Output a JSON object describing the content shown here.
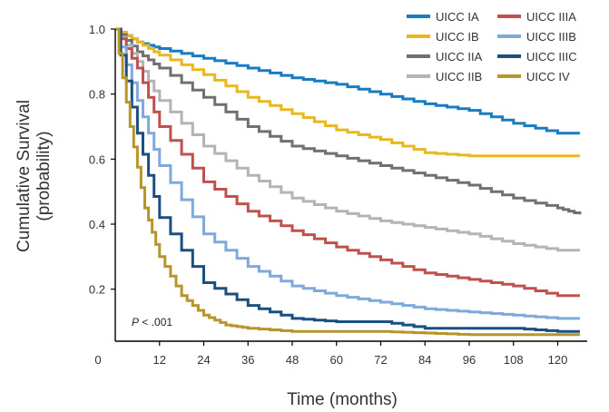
{
  "chart_data": {
    "type": "line",
    "xlabel": "Time (months)",
    "ylabel_line1": "Cumulative Survival",
    "ylabel_line2": "(probability)",
    "xlim": [
      0,
      128
    ],
    "ylim": [
      0.04,
      1.0
    ],
    "x_ticks": [
      12,
      24,
      36,
      48,
      60,
      72,
      84,
      96,
      108,
      120
    ],
    "x_origin_label": "0",
    "y_ticks": [
      0.2,
      0.4,
      0.6,
      0.8,
      1.0
    ],
    "y_tick_labels": [
      "0.2",
      "0.4",
      "0.6",
      "0.8",
      "1.0"
    ],
    "grid": false,
    "legend_placement": "top-right",
    "annotation": {
      "p_letter": "P",
      "p_rest": " < .001"
    },
    "series": [
      {
        "name": "UICC IA",
        "color": "#1a7cc0",
        "x": [
          0,
          6,
          12,
          24,
          36,
          48,
          60,
          72,
          84,
          96,
          108,
          120,
          126
        ],
        "y": [
          1.0,
          0.96,
          0.94,
          0.91,
          0.88,
          0.85,
          0.83,
          0.8,
          0.77,
          0.75,
          0.71,
          0.68,
          0.68
        ]
      },
      {
        "name": "UICC IB",
        "color": "#e8b820",
        "x": [
          0,
          6,
          12,
          24,
          36,
          48,
          60,
          72,
          84,
          96,
          108,
          120,
          126
        ],
        "y": [
          1.0,
          0.96,
          0.92,
          0.86,
          0.79,
          0.74,
          0.69,
          0.66,
          0.62,
          0.61,
          0.61,
          0.61,
          0.61
        ]
      },
      {
        "name": "UICC IIA",
        "color": "#707070",
        "x": [
          0,
          6,
          12,
          24,
          36,
          48,
          60,
          72,
          84,
          96,
          108,
          120,
          126
        ],
        "y": [
          1.0,
          0.93,
          0.88,
          0.79,
          0.7,
          0.64,
          0.61,
          0.58,
          0.55,
          0.52,
          0.48,
          0.45,
          0.43
        ]
      },
      {
        "name": "UICC IIB",
        "color": "#b4b4b4",
        "x": [
          0,
          6,
          12,
          24,
          36,
          48,
          60,
          72,
          84,
          96,
          108,
          120,
          126
        ],
        "y": [
          1.0,
          0.9,
          0.78,
          0.64,
          0.55,
          0.48,
          0.44,
          0.41,
          0.39,
          0.37,
          0.34,
          0.32,
          0.32
        ]
      },
      {
        "name": "UICC IIIA",
        "color": "#c0504d",
        "x": [
          0,
          6,
          12,
          24,
          36,
          48,
          60,
          72,
          84,
          96,
          108,
          120,
          126
        ],
        "y": [
          1.0,
          0.88,
          0.7,
          0.53,
          0.44,
          0.38,
          0.33,
          0.29,
          0.25,
          0.23,
          0.21,
          0.18,
          0.18
        ]
      },
      {
        "name": "UICC IIIB",
        "color": "#7fa9da",
        "x": [
          0,
          6,
          12,
          24,
          36,
          48,
          60,
          72,
          84,
          96,
          108,
          120,
          126
        ],
        "y": [
          1.0,
          0.78,
          0.58,
          0.37,
          0.27,
          0.21,
          0.18,
          0.16,
          0.14,
          0.13,
          0.12,
          0.11,
          0.11
        ]
      },
      {
        "name": "UICC IIIC",
        "color": "#1b4f80",
        "x": [
          0,
          6,
          12,
          24,
          36,
          48,
          60,
          72,
          84,
          96,
          108,
          120,
          126
        ],
        "y": [
          1.0,
          0.68,
          0.42,
          0.22,
          0.15,
          0.11,
          0.1,
          0.1,
          0.08,
          0.08,
          0.08,
          0.07,
          0.07
        ]
      },
      {
        "name": "UICC IV",
        "color": "#b8952b",
        "x": [
          0,
          4,
          8,
          12,
          18,
          24,
          30,
          36,
          48,
          60,
          72,
          84,
          96,
          108,
          120,
          126
        ],
        "y": [
          1.0,
          0.7,
          0.45,
          0.3,
          0.18,
          0.12,
          0.09,
          0.08,
          0.07,
          0.07,
          0.07,
          0.065,
          0.06,
          0.06,
          0.06,
          0.06
        ]
      }
    ],
    "legend_columns": [
      [
        "UICC IA",
        "UICC IB",
        "UICC IIA",
        "UICC IIB"
      ],
      [
        "UICC IIIA",
        "UICC IIIB",
        "UICC IIIC",
        "UICC IV"
      ]
    ]
  }
}
